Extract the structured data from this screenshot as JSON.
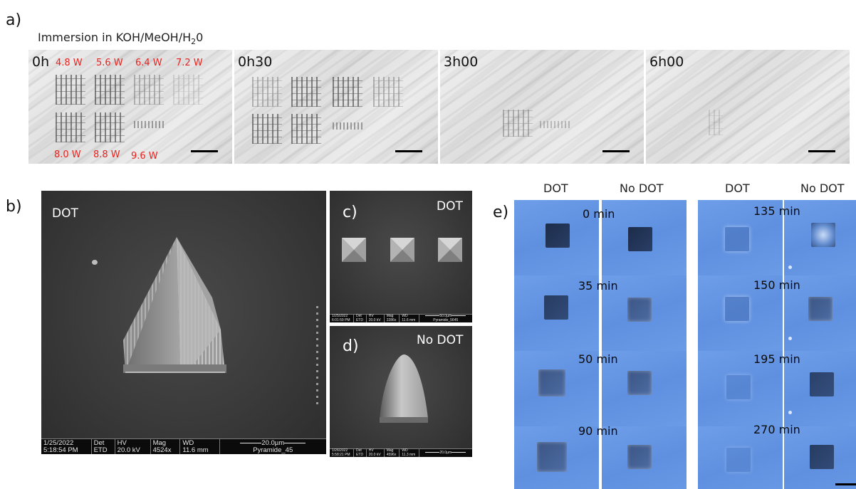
{
  "panel_a": {
    "letter": "a)",
    "caption_prefix": "Immersion in KOH/MeOH/H",
    "caption_sub": "2",
    "caption_suffix": "0",
    "frames": [
      "0h",
      "0h30",
      "3h00",
      "6h00"
    ],
    "powers_top": [
      "4.8 W",
      "5.6 W",
      "6.4 W",
      "7.2 W"
    ],
    "powers_bottom": [
      "8.0 W",
      "8.8 W",
      "9.6 W"
    ],
    "power_color": "#e8231f"
  },
  "panel_b": {
    "letter": "b)",
    "label": "DOT",
    "info": {
      "date": "1/25/2022",
      "time": "5:18:54 PM",
      "det_h": "Det",
      "det": "ETD",
      "hv_h": "HV",
      "hv": "20.0 kV",
      "mag_h": "Mag",
      "mag": "4524x",
      "wd_h": "WD",
      "wd": "11.6 mm",
      "scale": "20.0µm",
      "name": "Pyramide_45"
    }
  },
  "panel_c": {
    "letter": "c)",
    "label": "DOT",
    "info": {
      "date": "1/25/2022",
      "time": "6:01:59 PM",
      "det_h": "Det",
      "det": "ETD",
      "hv_h": "HV",
      "hv": "20.0 kV",
      "mag_h": "Mag",
      "mag": "2286x",
      "wd_h": "WD",
      "wd": "11.6 mm",
      "scale": "50.0µm",
      "name": "Pyramide_5645"
    }
  },
  "panel_d": {
    "letter": "d)",
    "label": "No DOT",
    "info": {
      "date": "1/26/2022",
      "time": "5:58:21 PM",
      "det_h": "Det",
      "det": "ETD",
      "hv_h": "HV",
      "hv": "20.0 kV",
      "mag_h": "Mag",
      "mag": "4596x",
      "wd_h": "WD",
      "wd": "11.3 mm",
      "scale": "20.0µm"
    }
  },
  "panel_e": {
    "letter": "e)",
    "headers": [
      "DOT",
      "No DOT",
      "DOT",
      "No DOT"
    ],
    "times_left": [
      "0 min",
      "35 min",
      "50 min",
      "90 min"
    ],
    "times_right": [
      "135 min",
      "150 min",
      "195 min",
      "270 min"
    ],
    "tile_color": "#6393e2"
  }
}
